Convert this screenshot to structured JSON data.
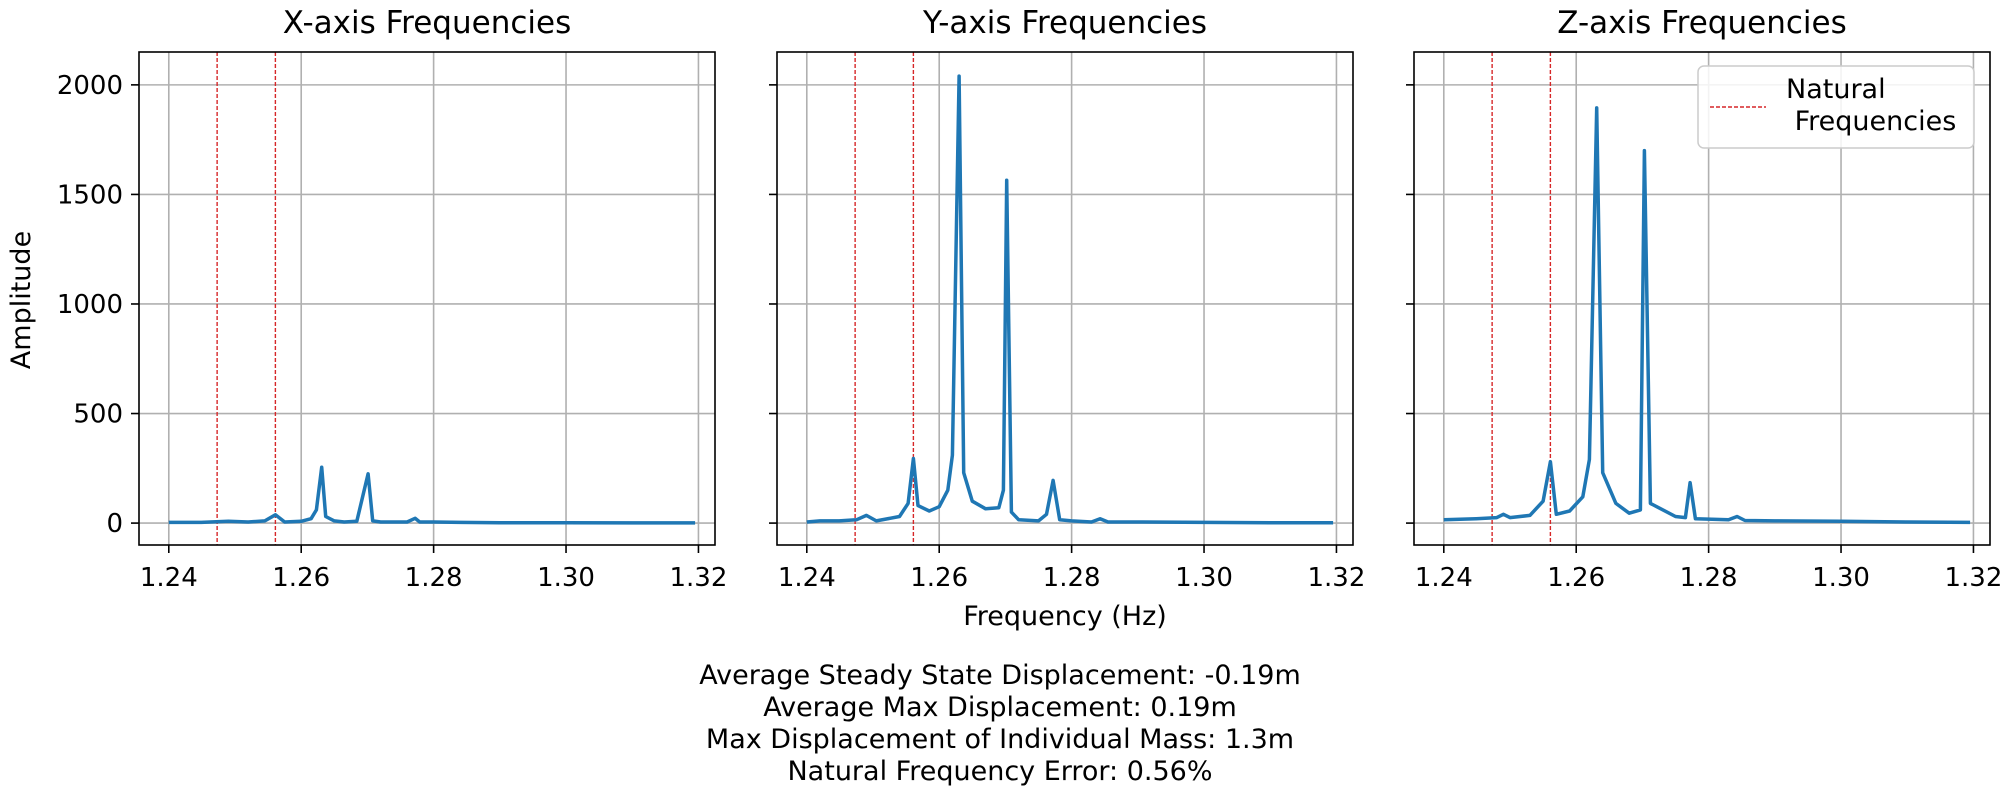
{
  "shared_xlabel": "Frequency (Hz)",
  "shared_ylabel": "Amplitude",
  "legend": {
    "label_line1": "Natural",
    "label_line2": " Frequencies",
    "placement": "upper right of Z-axis panel"
  },
  "summary": [
    "Average Steady State Displacement: -0.19m",
    "Average Max Displacement: 0.19m",
    "Max Displacement of Individual Mass: 1.3m",
    "Natural Frequency Error: 0.56%"
  ],
  "colors": {
    "series": "#1f77b4",
    "natural_freq": "#d62728",
    "grid": "#b0b0b0"
  },
  "chart_data": [
    {
      "type": "line",
      "title": "X-axis Frequencies",
      "xlabel": "",
      "ylabel": "Amplitude",
      "xlim": [
        1.2355,
        1.3225
      ],
      "ylim": [
        -100,
        2150
      ],
      "xticks": [
        1.24,
        1.26,
        1.28,
        1.3,
        1.32
      ],
      "xtick_labels": [
        "1.24",
        "1.26",
        "1.28",
        "1.30",
        "1.32"
      ],
      "yticks": [
        0,
        500,
        1000,
        1500,
        2000
      ],
      "ytick_labels": [
        "0",
        "500",
        "1000",
        "1500",
        "2000"
      ],
      "grid": true,
      "natural_frequencies": [
        1.2473,
        1.2561
      ],
      "x": [
        1.24,
        1.2449,
        1.249,
        1.252,
        1.2545,
        1.2561,
        1.2575,
        1.26,
        1.2615,
        1.2623,
        1.2631,
        1.2637,
        1.265,
        1.2665,
        1.2684,
        1.2701,
        1.2708,
        1.272,
        1.276,
        1.2772,
        1.2779,
        1.28,
        1.284,
        1.29,
        1.3,
        1.31,
        1.3195
      ],
      "y": [
        3,
        3,
        8,
        5,
        10,
        38,
        5,
        8,
        20,
        60,
        255,
        30,
        10,
        5,
        8,
        225,
        10,
        5,
        5,
        22,
        5,
        5,
        3,
        2,
        2,
        1,
        1
      ]
    },
    {
      "type": "line",
      "title": "Y-axis Frequencies",
      "xlabel": "Frequency (Hz)",
      "ylabel": "",
      "xlim": [
        1.2355,
        1.3225
      ],
      "ylim": [
        -100,
        2150
      ],
      "xticks": [
        1.24,
        1.26,
        1.28,
        1.3,
        1.32
      ],
      "xtick_labels": [
        "1.24",
        "1.26",
        "1.28",
        "1.30",
        "1.32"
      ],
      "yticks": [
        0,
        500,
        1000,
        1500,
        2000
      ],
      "ytick_labels": [],
      "grid": true,
      "natural_frequencies": [
        1.2473,
        1.2561
      ],
      "x": [
        1.24,
        1.242,
        1.2449,
        1.2475,
        1.249,
        1.2505,
        1.254,
        1.2553,
        1.2561,
        1.2568,
        1.2585,
        1.26,
        1.2613,
        1.262,
        1.263,
        1.2637,
        1.265,
        1.267,
        1.269,
        1.2697,
        1.2702,
        1.2709,
        1.272,
        1.275,
        1.2762,
        1.2772,
        1.2782,
        1.28,
        1.283,
        1.2843,
        1.2855,
        1.29,
        1.3,
        1.31,
        1.3195
      ],
      "y": [
        5,
        10,
        10,
        15,
        35,
        10,
        30,
        90,
        295,
        80,
        55,
        75,
        150,
        310,
        2040,
        230,
        100,
        65,
        70,
        150,
        1565,
        50,
        15,
        10,
        40,
        195,
        15,
        10,
        5,
        20,
        5,
        5,
        3,
        2,
        2
      ]
    },
    {
      "type": "line",
      "title": "Z-axis Frequencies",
      "xlabel": "",
      "ylabel": "",
      "xlim": [
        1.2355,
        1.3225
      ],
      "ylim": [
        -100,
        2150
      ],
      "xticks": [
        1.24,
        1.26,
        1.28,
        1.3,
        1.32
      ],
      "xtick_labels": [
        "1.24",
        "1.26",
        "1.28",
        "1.30",
        "1.32"
      ],
      "yticks": [
        0,
        500,
        1000,
        1500,
        2000
      ],
      "ytick_labels": [],
      "grid": true,
      "natural_frequencies": [
        1.2473,
        1.2561
      ],
      "x": [
        1.24,
        1.2449,
        1.248,
        1.249,
        1.25,
        1.253,
        1.255,
        1.2561,
        1.257,
        1.259,
        1.261,
        1.262,
        1.2631,
        1.264,
        1.266,
        1.268,
        1.2697,
        1.2703,
        1.2712,
        1.275,
        1.2765,
        1.2772,
        1.278,
        1.283,
        1.2843,
        1.2855,
        1.29,
        1.3,
        1.31,
        1.3195
      ],
      "y": [
        15,
        20,
        25,
        40,
        25,
        35,
        100,
        280,
        40,
        55,
        120,
        290,
        1895,
        230,
        90,
        45,
        60,
        1700,
        90,
        30,
        25,
        185,
        20,
        15,
        30,
        12,
        10,
        8,
        5,
        3
      ]
    }
  ]
}
